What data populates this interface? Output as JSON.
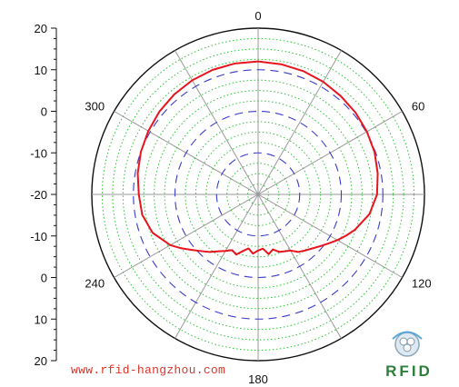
{
  "chart_data": {
    "type": "polar-line",
    "radial_axis": {
      "range": [
        -20,
        20
      ],
      "ticks": [
        20,
        10,
        0,
        -10,
        -20
      ],
      "tick_labels_top": [
        "20",
        "10",
        "0",
        "-10",
        "-20"
      ],
      "tick_labels_bottom": [
        "-10",
        "0",
        "10",
        "20"
      ]
    },
    "angular_axis": {
      "direction": "clockwise",
      "zero": "top",
      "labeled_angles": [
        0,
        60,
        120,
        180,
        240,
        300
      ],
      "labels": [
        "0",
        "60",
        "120",
        "180",
        "240",
        "300"
      ],
      "spokes_every_deg": 30
    },
    "grid": true,
    "series": [
      {
        "color": "#e8141e",
        "theta": [
          0,
          10,
          20,
          30,
          40,
          50,
          60,
          70,
          80,
          90,
          100,
          110,
          115,
          120,
          125,
          130,
          135,
          140,
          145,
          150,
          155,
          160,
          165,
          170,
          175,
          180,
          185,
          190,
          195,
          200,
          205,
          210,
          215,
          220,
          225,
          230,
          235,
          240,
          250,
          260,
          270,
          280,
          290,
          300,
          310,
          320,
          330,
          340,
          350,
          360
        ],
        "r": [
          12,
          11.8,
          11.6,
          11.3,
          10.9,
          10.6,
          10.2,
          9.8,
          9.2,
          8.6,
          7.2,
          4.8,
          3.4,
          2.0,
          0.6,
          -0.6,
          -1.6,
          -2.4,
          -3.1,
          -4.4,
          -4.9,
          -5.3,
          -6.3,
          -5.4,
          -6.9,
          -6.5,
          -5.7,
          -6.8,
          -5.9,
          -4.6,
          -5.2,
          -4.3,
          -3.3,
          -1.9,
          -0.7,
          0.8,
          2.6,
          4.4,
          7.0,
          8.3,
          8.7,
          9.4,
          10.0,
          10.5,
          11.0,
          11.4,
          11.7,
          11.9,
          12.0,
          12
        ]
      }
    ]
  },
  "footer": {
    "website": "www.rfid-hangzhou.com",
    "logo_text": "RFID"
  }
}
